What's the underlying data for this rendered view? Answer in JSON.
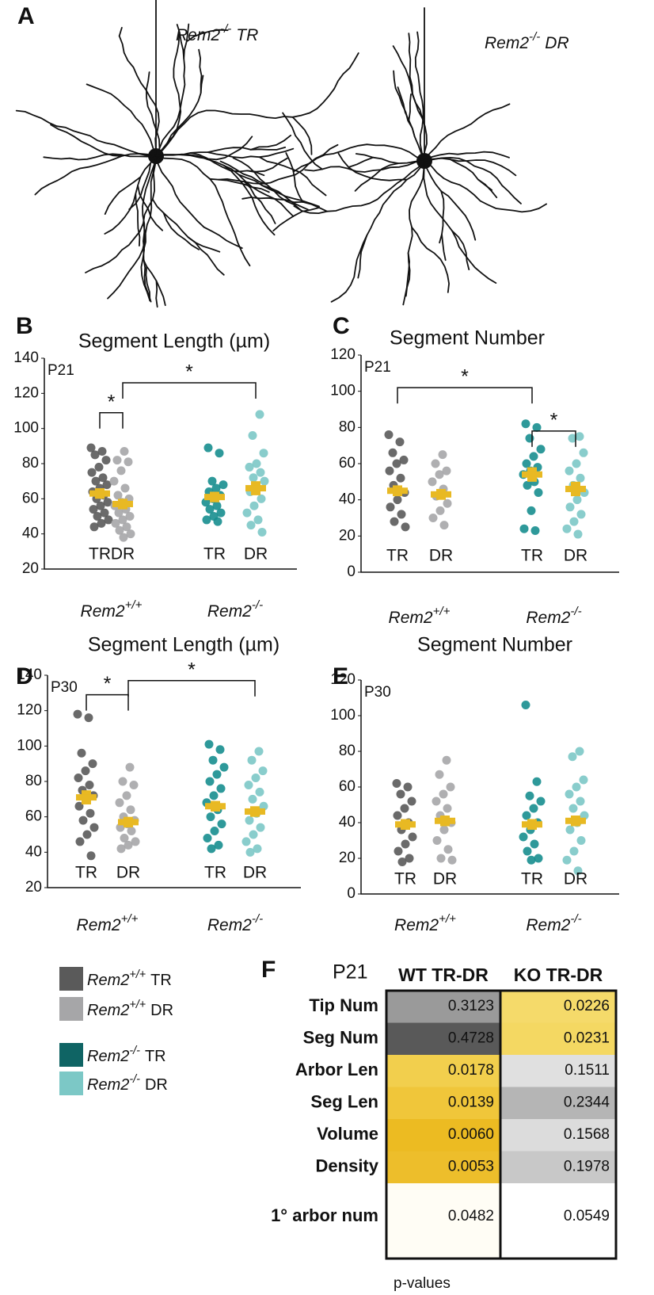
{
  "neurons": {
    "label": "A",
    "cells": [
      {
        "name": "Rem2",
        "superscript": "-/-",
        "condition": "TR"
      },
      {
        "name": "Rem2",
        "superscript": "-/-",
        "condition": "DR"
      }
    ]
  },
  "chart_data": [
    {
      "type": "strip",
      "label": "B",
      "title": "Segment Length (µm)",
      "age": "P21",
      "ylim": [
        20,
        140
      ],
      "yticks": [
        20,
        40,
        60,
        80,
        100,
        120,
        140
      ],
      "groups": [
        {
          "name": "Rem2",
          "superscript": "+/+"
        },
        {
          "name": "Rem2",
          "superscript": "-/-"
        }
      ],
      "categories": [
        "TR",
        "DR",
        "TR",
        "DR"
      ],
      "mean_color": "#e8b923",
      "series": [
        {
          "name": "TR",
          "color": "#5a5a5a",
          "mean": 63,
          "sem": 3,
          "values": [
            89,
            87,
            85,
            82,
            78,
            75,
            72,
            70,
            68,
            66,
            64,
            62,
            60,
            58,
            56,
            54,
            52,
            50,
            48,
            46,
            44
          ]
        },
        {
          "name": "DR",
          "color": "#a6a6a8",
          "mean": 57,
          "sem": 3,
          "values": [
            87,
            82,
            81,
            76,
            70,
            66,
            62,
            60,
            58,
            56,
            54,
            52,
            50,
            48,
            46,
            44,
            42,
            40,
            38
          ]
        },
        {
          "name": "TR",
          "color": "#178e8f",
          "mean": 61,
          "sem": 3,
          "values": [
            89,
            86,
            70,
            68,
            66,
            64,
            62,
            60,
            58,
            56,
            54,
            52,
            50,
            48,
            47
          ]
        },
        {
          "name": "DR",
          "color": "#7cc8c6",
          "mean": 66,
          "sem": 4,
          "values": [
            108,
            96,
            86,
            80,
            78,
            75,
            72,
            70,
            66,
            64,
            60,
            56,
            52,
            48,
            45,
            41
          ]
        }
      ],
      "brackets": [
        {
          "text": "*",
          "y": 109,
          "series": [
            0,
            1
          ]
        },
        {
          "text": "*",
          "y": 126,
          "series": [
            1,
            3
          ]
        }
      ]
    },
    {
      "type": "strip",
      "label": "C",
      "title": "Segment Number",
      "age": "P21",
      "ylim": [
        0,
        120
      ],
      "yticks": [
        0,
        20,
        40,
        60,
        80,
        100,
        120
      ],
      "groups": [
        {
          "name": "Rem2",
          "superscript": "+/+"
        },
        {
          "name": "Rem2",
          "superscript": "-/-"
        }
      ],
      "categories": [
        "TR",
        "DR",
        "TR",
        "DR"
      ],
      "mean_color": "#e8b923",
      "series": [
        {
          "name": "TR",
          "color": "#5a5a5a",
          "mean": 45,
          "sem": 3,
          "values": [
            76,
            72,
            66,
            62,
            60,
            56,
            52,
            48,
            44,
            40,
            36,
            32,
            28,
            25
          ]
        },
        {
          "name": "DR",
          "color": "#a6a6a8",
          "mean": 43,
          "sem": 3,
          "values": [
            65,
            60,
            56,
            54,
            50,
            46,
            42,
            38,
            34,
            30,
            26
          ]
        },
        {
          "name": "TR",
          "color": "#178e8f",
          "mean": 54,
          "sem": 4,
          "values": [
            82,
            80,
            74,
            68,
            64,
            60,
            58,
            56,
            54,
            50,
            48,
            44,
            34,
            24,
            23
          ]
        },
        {
          "name": "DR",
          "color": "#7cc8c6",
          "mean": 46,
          "sem": 4,
          "values": [
            75,
            74,
            66,
            60,
            56,
            52,
            48,
            44,
            40,
            36,
            32,
            28,
            24,
            21
          ]
        }
      ],
      "brackets": [
        {
          "text": "*",
          "y": 102,
          "series": [
            0,
            2
          ]
        },
        {
          "text": "*",
          "y": 78,
          "series": [
            2,
            3
          ]
        }
      ]
    },
    {
      "type": "strip",
      "label": "D",
      "title": "Segment Length (µm)",
      "age": "P30",
      "ylim": [
        20,
        140
      ],
      "yticks": [
        20,
        40,
        60,
        80,
        100,
        120,
        140
      ],
      "groups": [
        {
          "name": "Rem2",
          "superscript": "+/+"
        },
        {
          "name": "Rem2",
          "superscript": "-/-"
        }
      ],
      "categories": [
        "TR",
        "DR",
        "TR",
        "DR"
      ],
      "mean_color": "#e8b923",
      "series": [
        {
          "name": "TR",
          "color": "#5a5a5a",
          "mean": 71,
          "sem": 4,
          "values": [
            118,
            116,
            96,
            90,
            86,
            82,
            78,
            75,
            72,
            70,
            66,
            62,
            58,
            54,
            50,
            46,
            38
          ]
        },
        {
          "name": "DR",
          "color": "#a6a6a8",
          "mean": 57,
          "sem": 3,
          "values": [
            88,
            80,
            78,
            72,
            68,
            64,
            60,
            58,
            56,
            54,
            52,
            48,
            46,
            44,
            42
          ]
        },
        {
          "name": "TR",
          "color": "#178e8f",
          "mean": 66,
          "sem": 3,
          "values": [
            101,
            98,
            92,
            88,
            84,
            80,
            76,
            72,
            68,
            64,
            60,
            56,
            52,
            48,
            44,
            42
          ]
        },
        {
          "name": "DR",
          "color": "#7cc8c6",
          "mean": 63,
          "sem": 3,
          "values": [
            97,
            92,
            86,
            82,
            78,
            74,
            70,
            66,
            62,
            58,
            54,
            50,
            46,
            42,
            40
          ]
        }
      ],
      "brackets": [
        {
          "text": "*",
          "y": 129,
          "series": [
            0,
            1
          ]
        },
        {
          "text": "*",
          "y": 137,
          "series": [
            1,
            3
          ]
        }
      ]
    },
    {
      "type": "strip",
      "label": "E",
      "title": "Segment Number",
      "age": "P30",
      "ylim": [
        0,
        120
      ],
      "yticks": [
        0,
        20,
        40,
        60,
        80,
        100,
        120
      ],
      "groups": [
        {
          "name": "Rem2",
          "superscript": "+/+"
        },
        {
          "name": "Rem2",
          "superscript": "-/-"
        }
      ],
      "categories": [
        "TR",
        "DR",
        "TR",
        "DR"
      ],
      "mean_color": "#e8b923",
      "series": [
        {
          "name": "TR",
          "color": "#5a5a5a",
          "mean": 39,
          "sem": 3,
          "values": [
            62,
            60,
            56,
            52,
            48,
            44,
            40,
            36,
            32,
            28,
            24,
            20,
            18
          ]
        },
        {
          "name": "DR",
          "color": "#a6a6a8",
          "mean": 41,
          "sem": 3,
          "values": [
            75,
            67,
            60,
            56,
            52,
            48,
            44,
            40,
            36,
            30,
            25,
            20,
            19
          ]
        },
        {
          "name": "TR",
          "color": "#178e8f",
          "mean": 39,
          "sem": 3,
          "values": [
            106,
            63,
            55,
            52,
            48,
            44,
            40,
            36,
            32,
            28,
            24,
            20,
            19
          ]
        },
        {
          "name": "DR",
          "color": "#7cc8c6",
          "mean": 41,
          "sem": 3,
          "values": [
            80,
            77,
            64,
            60,
            56,
            52,
            48,
            44,
            40,
            36,
            30,
            24,
            19,
            13
          ]
        }
      ],
      "brackets": []
    }
  ],
  "legend": {
    "entries": [
      {
        "name": "Rem2",
        "superscript": "+/+",
        "condition": "TR",
        "color": "#5a5a5a"
      },
      {
        "name": "Rem2",
        "superscript": "+/+",
        "condition": "DR",
        "color": "#a6a6a8"
      },
      {
        "name": "Rem2",
        "superscript": "-/-",
        "condition": "TR",
        "color": "#0f6464"
      },
      {
        "name": "Rem2",
        "superscript": "-/-",
        "condition": "DR",
        "color": "#7cc8c6"
      }
    ]
  },
  "table": {
    "label": "F",
    "subtitle": "P21",
    "columns": [
      "WT TR-DR",
      "KO TR-DR"
    ],
    "footer": "p-values",
    "rows": [
      {
        "name": "Tip Num",
        "values": [
          "0.3123",
          "0.0226"
        ],
        "colors": [
          "#9a9a9a",
          "#f5da6a"
        ]
      },
      {
        "name": "Seg Num",
        "values": [
          "0.4728",
          "0.0231"
        ],
        "colors": [
          "#595959",
          "#f4d862"
        ]
      },
      {
        "name": "Arbor Len",
        "values": [
          "0.0178",
          "0.1511"
        ],
        "colors": [
          "#f2cf4d",
          "#e0e0e0"
        ]
      },
      {
        "name": "Seg Len",
        "values": [
          "0.0139",
          "0.2344"
        ],
        "colors": [
          "#f0c63a",
          "#b5b5b5"
        ]
      },
      {
        "name": "Volume",
        "values": [
          "0.0060",
          "0.1568"
        ],
        "colors": [
          "#ecbb22",
          "#dcdcdc"
        ]
      },
      {
        "name": "Density",
        "values": [
          "0.0053",
          "0.1978"
        ],
        "colors": [
          "#edbe2b",
          "#c8c8c8"
        ]
      },
      {
        "name": "1° arbor num",
        "values": [
          "0.0482",
          "0.0549"
        ],
        "colors": [
          "#fffdf5",
          "#ffffff"
        ]
      }
    ]
  }
}
